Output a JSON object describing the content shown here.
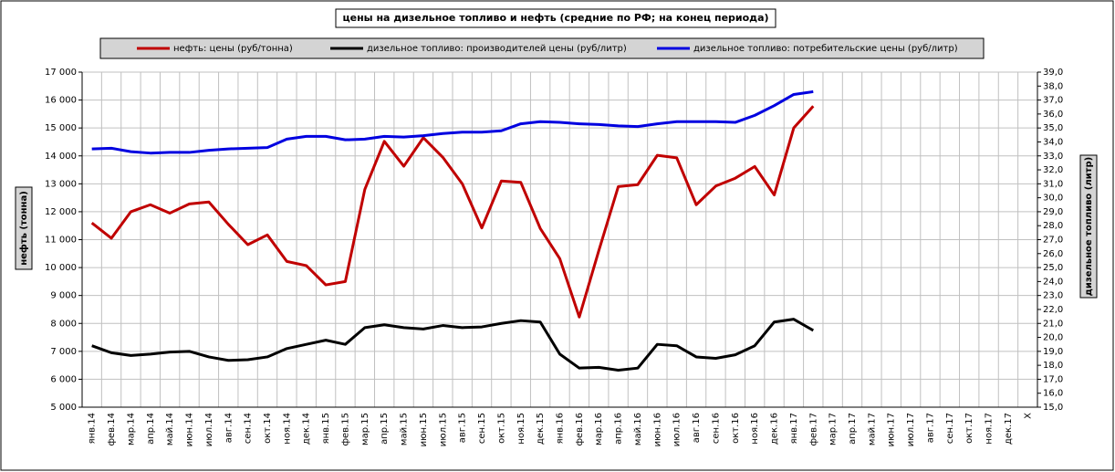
{
  "chart_data": {
    "type": "line",
    "title": "цены на дизельное топливо и нефть (средние по РФ; на конец периода)",
    "y_label": "нефть (тонна)",
    "y2_label": "дизельное топливо (литр)",
    "categories": [
      "янв.14",
      "фев.14",
      "мар.14",
      "апр.14",
      "май.14",
      "июн.14",
      "июл.14",
      "авг.14",
      "сен.14",
      "окт.14",
      "ноя.14",
      "дек.14",
      "янв.15",
      "фев.15",
      "мар.15",
      "апр.15",
      "май.15",
      "июн.15",
      "июл.15",
      "авг.15",
      "сен.15",
      "окт.15",
      "ноя.15",
      "дек.15",
      "янв.16",
      "фев.16",
      "мар.16",
      "апр.16",
      "май.16",
      "июн.16",
      "июл.16",
      "авг.16",
      "сен.16",
      "окт.16",
      "ноя.16",
      "дек.16",
      "янв.17",
      "фев.17",
      "мар.17",
      "апр.17",
      "май.17",
      "июн.17",
      "июл.17",
      "авг.17",
      "сен.17",
      "окт.17",
      "ноя.17",
      "дек.17",
      "X"
    ],
    "series": [
      {
        "name": "нефть: цены (руб/тонна)",
        "color": "#c00000",
        "axis": "y",
        "values": [
          11600,
          11050,
          12000,
          12250,
          11950,
          12280,
          12350,
          11550,
          10820,
          11170,
          10220,
          10070,
          9380,
          9500,
          12800,
          14520,
          13630,
          14650,
          13950,
          13000,
          11420,
          13100,
          13050,
          11400,
          10320,
          8230,
          10600,
          12900,
          12970,
          14020,
          13930,
          12250,
          12920,
          13200,
          13620,
          12600,
          15000,
          15780,
          null,
          null,
          null,
          null,
          null,
          null,
          null,
          null,
          null,
          null,
          null
        ]
      },
      {
        "name": "дизельное топливо: производителей цены (руб/литр)",
        "color": "#000000",
        "axis": "y2",
        "values": [
          19.4,
          18.9,
          18.7,
          18.8,
          18.95,
          19.0,
          18.6,
          18.35,
          18.4,
          18.6,
          19.2,
          19.5,
          19.8,
          19.5,
          20.7,
          20.9,
          20.7,
          20.6,
          20.85,
          20.7,
          20.75,
          21.0,
          21.2,
          21.1,
          18.8,
          17.8,
          17.85,
          17.65,
          17.8,
          19.5,
          19.4,
          18.6,
          18.5,
          18.75,
          19.4,
          21.1,
          21.3,
          20.5,
          null,
          null,
          null,
          null,
          null,
          null,
          null,
          null,
          null,
          null,
          null
        ]
      },
      {
        "name": "дизельное топливо: потребительские цены (руб/литр)",
        "color": "#0000e0",
        "axis": "y2",
        "values": [
          33.5,
          33.55,
          33.3,
          33.2,
          33.25,
          33.25,
          33.4,
          33.5,
          33.55,
          33.6,
          34.2,
          34.4,
          34.4,
          34.15,
          34.2,
          34.4,
          34.35,
          34.45,
          34.6,
          34.7,
          34.7,
          34.8,
          35.3,
          35.45,
          35.4,
          35.3,
          35.25,
          35.15,
          35.1,
          35.3,
          35.45,
          35.45,
          35.45,
          35.4,
          35.9,
          36.6,
          37.4,
          37.6,
          null,
          null,
          null,
          null,
          null,
          null,
          null,
          null,
          null,
          null,
          null
        ]
      }
    ],
    "ylim": [
      5000,
      17000
    ],
    "yticks": [
      {
        "value": 5000,
        "label": "5 000"
      },
      {
        "value": 6000,
        "label": "6 000"
      },
      {
        "value": 7000,
        "label": "7 000"
      },
      {
        "value": 8000,
        "label": "8 000"
      },
      {
        "value": 9000,
        "label": "9 000"
      },
      {
        "value": 10000,
        "label": "10 000"
      },
      {
        "value": 11000,
        "label": "11 000"
      },
      {
        "value": 12000,
        "label": "12 000"
      },
      {
        "value": 13000,
        "label": "13 000"
      },
      {
        "value": 14000,
        "label": "14 000"
      },
      {
        "value": 15000,
        "label": "15 000"
      },
      {
        "value": 16000,
        "label": "16 000"
      },
      {
        "value": 17000,
        "label": "17 000"
      }
    ],
    "y2lim": [
      15,
      39
    ],
    "y2ticks": [
      {
        "value": 15,
        "label": "15,0"
      },
      {
        "value": 16,
        "label": "16,0"
      },
      {
        "value": 17,
        "label": "17,0"
      },
      {
        "value": 18,
        "label": "18,0"
      },
      {
        "value": 19,
        "label": "19,0"
      },
      {
        "value": 20,
        "label": "20,0"
      },
      {
        "value": 21,
        "label": "21,0"
      },
      {
        "value": 22,
        "label": "22,0"
      },
      {
        "value": 23,
        "label": "23,0"
      },
      {
        "value": 24,
        "label": "24,0"
      },
      {
        "value": 25,
        "label": "25,0"
      },
      {
        "value": 26,
        "label": "26,0"
      },
      {
        "value": 27,
        "label": "27,0"
      },
      {
        "value": 28,
        "label": "28,0"
      },
      {
        "value": 29,
        "label": "29,0"
      },
      {
        "value": 30,
        "label": "30,0"
      },
      {
        "value": 31,
        "label": "31,0"
      },
      {
        "value": 32,
        "label": "32,0"
      },
      {
        "value": 33,
        "label": "33,0"
      },
      {
        "value": 34,
        "label": "34,0"
      },
      {
        "value": 35,
        "label": "35,0"
      },
      {
        "value": 36,
        "label": "36,0"
      },
      {
        "value": 37,
        "label": "37,0"
      },
      {
        "value": 38,
        "label": "38,0"
      },
      {
        "value": 39,
        "label": "39,0"
      }
    ],
    "grid": true
  }
}
